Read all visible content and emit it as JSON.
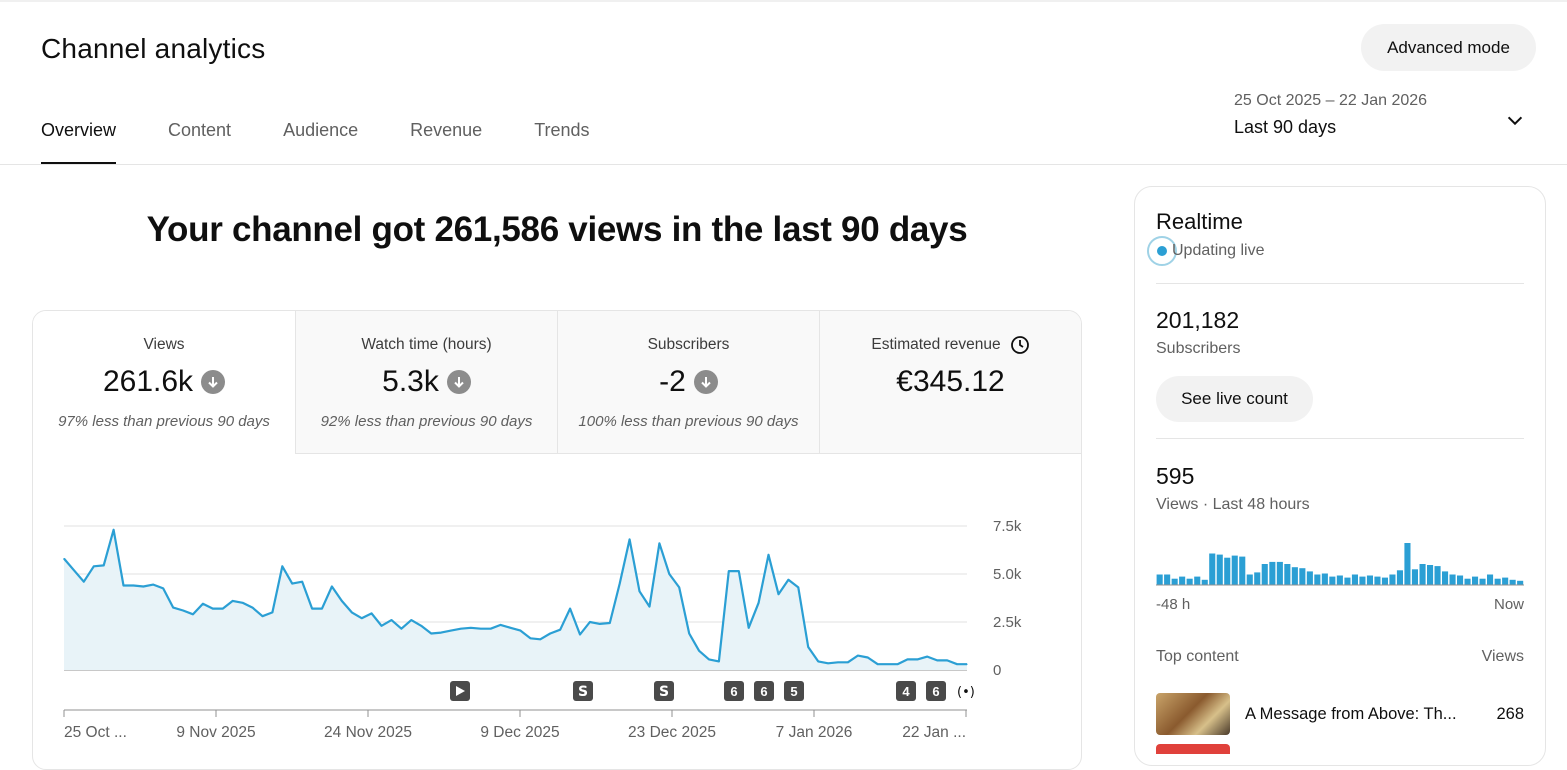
{
  "header": {
    "title": "Channel analytics",
    "advanced_mode": "Advanced mode",
    "tabs": [
      "Overview",
      "Content",
      "Audience",
      "Revenue",
      "Trends"
    ],
    "active_tab": "Overview",
    "date_range": {
      "dates": "25 Oct 2025 – 22 Jan 2026",
      "period": "Last 90 days"
    }
  },
  "headline": "Your channel got 261,586 views in the last 90 days",
  "metrics": [
    {
      "label": "Views",
      "value": "261.6k",
      "sub": "97% less than previous 90 days",
      "trend": "down"
    },
    {
      "label": "Watch time (hours)",
      "value": "5.3k",
      "sub": "92% less than previous 90 days",
      "trend": "down"
    },
    {
      "label": "Subscribers",
      "value": "-2",
      "sub": "100% less than previous 90 days",
      "trend": "down"
    },
    {
      "label": "Estimated revenue",
      "value": "€345.12",
      "sub": "",
      "trend": "none",
      "icon": "clock-icon"
    }
  ],
  "colors": {
    "accent": "#2b9fd4",
    "fill": "#e8f3f8"
  },
  "chart_data": {
    "type": "area",
    "ylim": [
      0,
      7500
    ],
    "y_ticks": [
      "7.5k",
      "5.0k",
      "2.5k",
      "0"
    ],
    "x_tick_labels": [
      "25 Oct ...",
      "9 Nov 2025",
      "24 Nov 2025",
      "9 Dec 2025",
      "23 Dec 2025",
      "7 Jan 2026",
      "22 Jan ..."
    ],
    "values": [
      5800,
      5200,
      4600,
      5400,
      5450,
      7300,
      4400,
      4400,
      4350,
      4450,
      4250,
      3250,
      3100,
      2900,
      3450,
      3200,
      3200,
      3600,
      3500,
      3250,
      2800,
      3000,
      5400,
      4500,
      4600,
      3200,
      3200,
      4350,
      3600,
      3000,
      2700,
      2950,
      2300,
      2600,
      2150,
      2600,
      2300,
      1900,
      1950,
      2050,
      2150,
      2200,
      2150,
      2150,
      2350,
      2200,
      2050,
      1650,
      1600,
      1900,
      2100,
      3200,
      1850,
      2500,
      2400,
      2450,
      4500,
      6800,
      4100,
      3300,
      6600,
      5000,
      4300,
      1900,
      1000,
      550,
      450,
      5150,
      5150,
      2200,
      3500,
      6000,
      3950,
      4700,
      4300,
      1200,
      450,
      350,
      400,
      400,
      750,
      650,
      300,
      300,
      300,
      550,
      550,
      700,
      500,
      500,
      300,
      300
    ],
    "markers": [
      {
        "type": "video",
        "label": ""
      },
      {
        "type": "short",
        "label": ""
      },
      {
        "type": "short",
        "label": ""
      },
      {
        "type": "count",
        "label": "6"
      },
      {
        "type": "count",
        "label": "6"
      },
      {
        "type": "count",
        "label": "5"
      },
      {
        "type": "count",
        "label": "4"
      },
      {
        "type": "count",
        "label": "6"
      },
      {
        "type": "live",
        "label": ""
      }
    ]
  },
  "realtime": {
    "title": "Realtime",
    "live_text": "Updating live",
    "subscribers": "201,182",
    "subscribers_label": "Subscribers",
    "live_button": "See live count",
    "views": "595",
    "views_label": "Views · Last 48 hours",
    "axis_start": "-48 h",
    "axis_end": "Now",
    "bars": [
      10,
      10,
      6,
      8,
      6,
      8,
      5,
      30,
      29,
      26,
      28,
      27,
      10,
      12,
      20,
      22,
      22,
      20,
      17,
      16,
      13,
      10,
      11,
      8,
      9,
      7,
      10,
      8,
      9,
      8,
      7,
      10,
      14,
      40,
      15,
      20,
      19,
      18,
      13,
      10,
      9,
      6,
      8,
      6,
      10,
      6,
      7,
      5,
      4
    ],
    "top_content_label": "Top content",
    "views_col_label": "Views",
    "top_content": [
      {
        "title": "A Message from Above: Th...",
        "views": "268"
      }
    ]
  }
}
